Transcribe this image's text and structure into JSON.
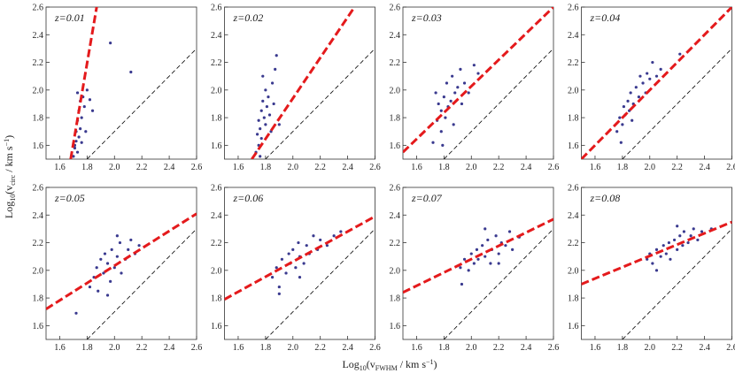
{
  "figure": {
    "xlabel": [
      "Log",
      "10",
      "(v",
      "FWHM",
      " / km s",
      "−1",
      ")"
    ],
    "ylabel": [
      "Log",
      "10",
      "(v",
      "circ",
      " / km s",
      "−1",
      ")"
    ]
  },
  "chart_data": [
    {
      "type": "scatter",
      "annotation": "z=0.01",
      "xlim": [
        1.5,
        2.6
      ],
      "ylim": [
        1.5,
        2.6
      ],
      "xticks": [
        1.6,
        1.8,
        {
          "value": 2,
          "label": "2.0"
        },
        2.2,
        2.4,
        2.6
      ],
      "yticks": [
        1.6,
        1.8,
        {
          "value": 2,
          "label": "2.0"
        },
        2.2,
        2.4,
        2.6
      ],
      "color": "#3a3a8f",
      "x": [
        1.7,
        1.71,
        1.72,
        1.72,
        1.73,
        1.73,
        1.74,
        1.74,
        1.75,
        1.75,
        1.76,
        1.77,
        1.78,
        1.79,
        1.8,
        1.82,
        1.84,
        1.71,
        1.97,
        2.12,
        1.73,
        1.76
      ],
      "y": [
        1.52,
        1.58,
        1.63,
        1.7,
        1.55,
        1.78,
        1.66,
        1.85,
        1.72,
        1.92,
        1.8,
        1.95,
        1.88,
        1.7,
        2.0,
        1.93,
        1.85,
        1.6,
        2.34,
        2.13,
        1.98,
        1.62
      ],
      "fit": {
        "x": [
          1.68,
          1.87
        ],
        "y": [
          1.5,
          2.6
        ],
        "color": "#e41a1c"
      },
      "reference": {
        "x": [
          1.8,
          2.6
        ],
        "y": [
          1.5,
          2.3
        ],
        "color": "#000000"
      }
    },
    {
      "type": "scatter",
      "annotation": "z=0.02",
      "xlim": [
        1.5,
        2.6
      ],
      "ylim": [
        1.5,
        2.6
      ],
      "xticks": [
        1.6,
        1.8,
        {
          "value": 2,
          "label": "2.0"
        },
        2.2,
        2.4,
        2.6
      ],
      "yticks": [
        1.6,
        1.8,
        {
          "value": 2,
          "label": "2.0"
        },
        2.2,
        2.4,
        2.6
      ],
      "color": "#3a3a8f",
      "x": [
        1.73,
        1.74,
        1.75,
        1.75,
        1.76,
        1.77,
        1.77,
        1.78,
        1.79,
        1.8,
        1.8,
        1.81,
        1.82,
        1.83,
        1.85,
        1.86,
        1.88,
        1.9,
        1.76,
        1.78,
        1.84,
        1.87
      ],
      "y": [
        1.55,
        1.68,
        1.6,
        1.78,
        1.72,
        1.85,
        1.65,
        1.92,
        1.8,
        1.75,
        2.0,
        1.88,
        1.95,
        1.82,
        2.05,
        1.9,
        2.25,
        1.75,
        1.52,
        2.1,
        1.7,
        2.15
      ],
      "fit": {
        "x": [
          1.7,
          2.45
        ],
        "y": [
          1.5,
          2.6
        ],
        "color": "#e41a1c"
      },
      "reference": {
        "x": [
          1.8,
          2.6
        ],
        "y": [
          1.5,
          2.3
        ],
        "color": "#000000"
      }
    },
    {
      "type": "scatter",
      "annotation": "z=0.03",
      "xlim": [
        1.5,
        2.6
      ],
      "ylim": [
        1.5,
        2.6
      ],
      "xticks": [
        1.6,
        1.8,
        {
          "value": 2,
          "label": "2.0"
        },
        2.2,
        2.4,
        2.6
      ],
      "yticks": [
        1.6,
        1.8,
        {
          "value": 2,
          "label": "2.0"
        },
        2.2,
        2.4,
        2.6
      ],
      "color": "#3a3a8f",
      "x": [
        1.72,
        1.75,
        1.76,
        1.78,
        1.78,
        1.8,
        1.81,
        1.82,
        1.83,
        1.85,
        1.86,
        1.88,
        1.9,
        1.92,
        1.95,
        1.98,
        2.02,
        2.05,
        1.79,
        1.87,
        1.74,
        1.93
      ],
      "y": [
        1.62,
        1.78,
        1.9,
        1.7,
        1.85,
        1.95,
        1.8,
        2.05,
        1.88,
        1.92,
        2.1,
        1.98,
        2.02,
        2.15,
        2.05,
        1.98,
        2.18,
        2.12,
        1.6,
        1.75,
        1.98,
        1.9
      ],
      "fit": {
        "x": [
          1.5,
          2.6
        ],
        "y": [
          1.55,
          2.6
        ],
        "color": "#e41a1c"
      },
      "reference": {
        "x": [
          1.8,
          2.6
        ],
        "y": [
          1.5,
          2.3
        ],
        "color": "#000000"
      }
    },
    {
      "type": "scatter",
      "annotation": "z=0.04",
      "xlim": [
        1.5,
        2.6
      ],
      "ylim": [
        1.5,
        2.6
      ],
      "xticks": [
        1.6,
        1.8,
        {
          "value": 2,
          "label": "2.0"
        },
        2.2,
        2.4,
        2.6
      ],
      "yticks": [
        1.6,
        1.8,
        {
          "value": 2,
          "label": "2.0"
        },
        2.2,
        2.4,
        2.6
      ],
      "color": "#3a3a8f",
      "x": [
        1.76,
        1.78,
        1.8,
        1.81,
        1.82,
        1.84,
        1.85,
        1.86,
        1.88,
        1.9,
        1.92,
        1.93,
        1.95,
        1.97,
        1.98,
        2.0,
        2.02,
        2.05,
        2.08,
        1.79,
        1.87,
        2.22
      ],
      "y": [
        1.7,
        1.8,
        1.75,
        1.88,
        1.82,
        1.92,
        1.85,
        1.98,
        1.9,
        2.02,
        1.95,
        2.1,
        2.05,
        1.98,
        2.12,
        2.08,
        2.2,
        2.1,
        2.15,
        1.62,
        1.78,
        2.26
      ],
      "fit": {
        "x": [
          1.5,
          2.6
        ],
        "y": [
          1.5,
          2.6
        ],
        "color": "#e41a1c"
      },
      "reference": {
        "x": [
          1.8,
          2.6
        ],
        "y": [
          1.5,
          2.3
        ],
        "color": "#000000"
      }
    },
    {
      "type": "scatter",
      "annotation": "z=0.05",
      "xlim": [
        1.5,
        2.6
      ],
      "ylim": [
        1.5,
        2.6
      ],
      "xticks": [
        1.6,
        1.8,
        {
          "value": 2,
          "label": "2.0"
        },
        2.2,
        2.4,
        2.6
      ],
      "yticks": [
        1.6,
        1.8,
        {
          "value": 2,
          "label": "2.0"
        },
        2.2,
        2.4,
        2.6
      ],
      "color": "#3a3a8f",
      "x": [
        1.82,
        1.85,
        1.87,
        1.88,
        1.9,
        1.92,
        1.93,
        1.95,
        1.97,
        1.98,
        2.0,
        2.02,
        2.04,
        2.05,
        2.08,
        2.1,
        2.12,
        2.15,
        2.18,
        1.72,
        1.95,
        2.02
      ],
      "y": [
        1.88,
        1.95,
        2.02,
        1.85,
        2.08,
        1.98,
        2.12,
        2.05,
        1.92,
        2.15,
        2.02,
        2.1,
        2.2,
        1.98,
        2.08,
        2.15,
        2.22,
        2.12,
        2.18,
        1.69,
        1.82,
        2.25
      ],
      "fit": {
        "x": [
          1.5,
          2.6
        ],
        "y": [
          1.72,
          2.41
        ],
        "color": "#e41a1c"
      },
      "reference": {
        "x": [
          1.8,
          2.6
        ],
        "y": [
          1.5,
          2.3
        ],
        "color": "#000000"
      }
    },
    {
      "type": "scatter",
      "annotation": "z=0.06",
      "xlim": [
        1.5,
        2.6
      ],
      "ylim": [
        1.5,
        2.6
      ],
      "xticks": [
        1.6,
        1.8,
        {
          "value": 2,
          "label": "2.0"
        },
        2.2,
        2.4,
        2.6
      ],
      "yticks": [
        1.6,
        1.8,
        {
          "value": 2,
          "label": "2.0"
        },
        2.2,
        2.4,
        2.6
      ],
      "color": "#3a3a8f",
      "x": [
        1.85,
        1.88,
        1.9,
        1.92,
        1.95,
        1.97,
        1.98,
        2.0,
        2.02,
        2.04,
        2.05,
        2.08,
        2.1,
        2.12,
        2.15,
        2.18,
        2.2,
        2.25,
        2.3,
        1.9,
        2.05,
        2.35
      ],
      "y": [
        1.95,
        2.02,
        1.88,
        2.08,
        1.98,
        2.12,
        2.05,
        2.15,
        2.02,
        2.2,
        2.1,
        2.05,
        2.18,
        2.12,
        2.25,
        2.15,
        2.22,
        2.18,
        2.25,
        1.83,
        1.95,
        2.28
      ],
      "fit": {
        "x": [
          1.5,
          2.6
        ],
        "y": [
          1.79,
          2.39
        ],
        "color": "#e41a1c"
      },
      "reference": {
        "x": [
          1.8,
          2.6
        ],
        "y": [
          1.5,
          2.3
        ],
        "color": "#000000"
      }
    },
    {
      "type": "scatter",
      "annotation": "z=0.07",
      "xlim": [
        1.5,
        2.6
      ],
      "ylim": [
        1.5,
        2.6
      ],
      "xticks": [
        1.6,
        1.8,
        {
          "value": 2,
          "label": "2.0"
        },
        2.2,
        2.4,
        2.6
      ],
      "yticks": [
        1.6,
        1.8,
        {
          "value": 2,
          "label": "2.0"
        },
        2.2,
        2.4,
        2.6
      ],
      "color": "#3a3a8f",
      "x": [
        1.92,
        1.95,
        1.98,
        2.0,
        2.02,
        2.04,
        2.05,
        2.08,
        2.1,
        2.12,
        2.14,
        2.15,
        2.18,
        2.2,
        2.22,
        2.25,
        2.28,
        2.3,
        2.35,
        1.93,
        2.1,
        2.2
      ],
      "y": [
        2.02,
        2.08,
        2.0,
        2.12,
        2.05,
        2.15,
        2.08,
        2.18,
        2.1,
        2.22,
        2.05,
        2.15,
        2.25,
        2.12,
        2.2,
        2.18,
        2.28,
        2.15,
        2.24,
        1.9,
        2.3,
        2.05
      ],
      "fit": {
        "x": [
          1.5,
          2.6
        ],
        "y": [
          1.84,
          2.37
        ],
        "color": "#e41a1c"
      },
      "reference": {
        "x": [
          1.8,
          2.6
        ],
        "y": [
          1.5,
          2.3
        ],
        "color": "#000000"
      }
    },
    {
      "type": "scatter",
      "annotation": "z=0.08",
      "xlim": [
        1.5,
        2.6
      ],
      "ylim": [
        1.5,
        2.6
      ],
      "xticks": [
        1.6,
        1.8,
        {
          "value": 2,
          "label": "2.0"
        },
        2.2,
        2.4,
        2.6
      ],
      "yticks": [
        1.6,
        1.8,
        {
          "value": 2,
          "label": "2.0"
        },
        2.2,
        2.4,
        2.6
      ],
      "color": "#3a3a8f",
      "x": [
        1.98,
        2.0,
        2.02,
        2.05,
        2.08,
        2.1,
        2.12,
        2.14,
        2.15,
        2.18,
        2.2,
        2.22,
        2.24,
        2.25,
        2.28,
        2.3,
        2.32,
        2.35,
        2.38,
        2.05,
        2.2,
        2.45
      ],
      "y": [
        2.08,
        2.12,
        2.05,
        2.15,
        2.1,
        2.18,
        2.12,
        2.2,
        2.08,
        2.22,
        2.15,
        2.25,
        2.18,
        2.28,
        2.2,
        2.25,
        2.3,
        2.22,
        2.28,
        2.0,
        2.32,
        2.3
      ],
      "fit": {
        "x": [
          1.5,
          2.6
        ],
        "y": [
          1.9,
          2.35
        ],
        "color": "#e41a1c"
      },
      "reference": {
        "x": [
          1.8,
          2.6
        ],
        "y": [
          1.5,
          2.3
        ],
        "color": "#000000"
      }
    }
  ]
}
